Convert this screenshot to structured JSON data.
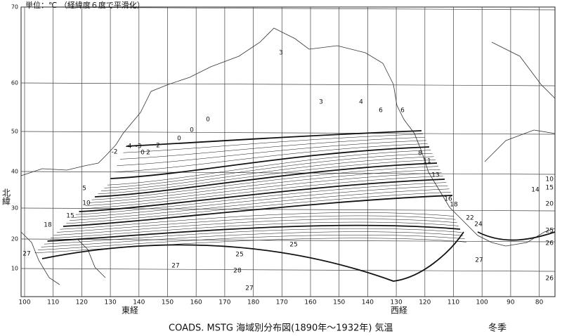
{
  "header": {
    "title": "単位：℃ （経緯度６度で平滑化）"
  },
  "map": {
    "lat_axis_label": "北緯",
    "east_label": "東経",
    "west_label": "西経",
    "lat_labels": [
      "70",
      "60",
      "50",
      "40",
      "30",
      "20",
      "10"
    ],
    "lon_labels": [
      "100",
      "110",
      "120",
      "130",
      "140",
      "150",
      "160",
      "170",
      "180",
      "170",
      "160",
      "150",
      "140",
      "130",
      "120",
      "110",
      "100",
      "90",
      "80"
    ],
    "contour_labels": [
      "0",
      "0",
      "0",
      "2",
      "-2",
      "-4",
      "-3",
      "0",
      "2",
      "3",
      "4",
      "6",
      "6",
      "8",
      "11",
      "13",
      "16",
      "18",
      "22",
      "24",
      "14",
      "10",
      "15",
      "20",
      "25",
      "26",
      "27",
      "18",
      "15",
      "10",
      "25",
      "25",
      "27",
      "27",
      "28",
      "27",
      "26",
      "5",
      "3"
    ]
  },
  "caption": {
    "text": "COADS. MSTG 海域別分布図(1890年～1932年) 気温",
    "season": "冬季"
  }
}
